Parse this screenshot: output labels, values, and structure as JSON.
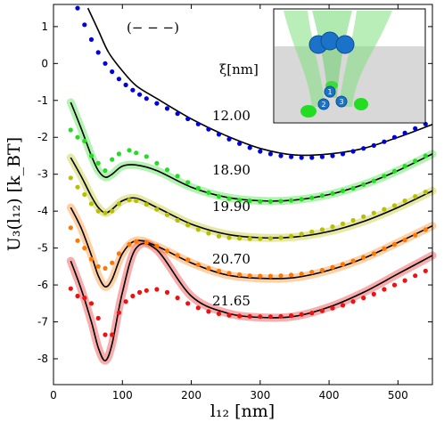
{
  "chart_data": {
    "type": "line",
    "xlabel": "l₁₂ [nm]",
    "ylabel": "U₃(l₁₂) [k_BT]",
    "xlim": [
      0,
      550
    ],
    "ylim": [
      -8.7,
      1.6
    ],
    "xticks": [
      "0",
      "100",
      "200",
      "300",
      "400",
      "500"
    ],
    "yticks": [
      "1",
      "0",
      "-1",
      "-2",
      "-3",
      "-4",
      "-5",
      "-6",
      "-7",
      "-8"
    ],
    "grid": false,
    "annotations": {
      "legend_label": "(− − −)",
      "xi_header": "ξ[nm]"
    },
    "series": [
      {
        "name": "12.00",
        "color": "#0000dd",
        "band": false,
        "curve_x": [
          50,
          65,
          80,
          100,
          120,
          150,
          200,
          250,
          300,
          350,
          400,
          450,
          500,
          550
        ],
        "curve_y": [
          1.5,
          0.9,
          0.3,
          -0.2,
          -0.6,
          -0.95,
          -1.5,
          -1.95,
          -2.3,
          -2.48,
          -2.45,
          -2.3,
          -2.0,
          -1.65
        ],
        "points_x": [
          35,
          45,
          55,
          65,
          75,
          85,
          95,
          105,
          115,
          125,
          135,
          150,
          165,
          180,
          195,
          210,
          225,
          240,
          255,
          270,
          285,
          300,
          315,
          330,
          345,
          360,
          375,
          390,
          405,
          420,
          435,
          450,
          465,
          480,
          495,
          510,
          525,
          540
        ],
        "points_y": [
          1.5,
          1.05,
          0.65,
          0.3,
          0.0,
          -0.22,
          -0.42,
          -0.58,
          -0.72,
          -0.84,
          -0.95,
          -1.08,
          -1.22,
          -1.36,
          -1.5,
          -1.64,
          -1.78,
          -1.92,
          -2.05,
          -2.17,
          -2.28,
          -2.38,
          -2.45,
          -2.5,
          -2.53,
          -2.55,
          -2.55,
          -2.53,
          -2.5,
          -2.45,
          -2.38,
          -2.3,
          -2.22,
          -2.12,
          -2.0,
          -1.88,
          -1.76,
          -1.64
        ]
      },
      {
        "name": "18.90",
        "color": "#22dd22",
        "band": true,
        "curve_x": [
          25,
          40,
          55,
          65,
          75,
          85,
          100,
          120,
          150,
          200,
          250,
          300,
          350,
          400,
          450,
          500,
          550
        ],
        "curve_y": [
          -1.05,
          -1.75,
          -2.5,
          -2.9,
          -3.08,
          -3.0,
          -2.78,
          -2.75,
          -2.9,
          -3.35,
          -3.62,
          -3.72,
          -3.7,
          -3.55,
          -3.28,
          -2.9,
          -2.45
        ],
        "points_x": [
          25,
          35,
          45,
          55,
          65,
          75,
          85,
          95,
          110,
          120,
          135,
          150,
          165,
          180,
          195,
          210,
          225,
          240,
          255,
          270,
          285,
          300,
          315,
          330,
          345,
          360,
          375,
          390,
          405,
          420,
          435,
          450,
          465,
          480,
          495,
          510,
          525,
          540
        ],
        "points_y": [
          -1.8,
          -2.0,
          -2.1,
          -2.5,
          -2.7,
          -2.9,
          -2.6,
          -2.45,
          -2.35,
          -2.42,
          -2.52,
          -2.7,
          -2.88,
          -3.05,
          -3.22,
          -3.38,
          -3.5,
          -3.6,
          -3.66,
          -3.7,
          -3.72,
          -3.74,
          -3.74,
          -3.73,
          -3.71,
          -3.68,
          -3.64,
          -3.58,
          -3.52,
          -3.45,
          -3.38,
          -3.28,
          -3.18,
          -3.05,
          -2.92,
          -2.78,
          -2.64,
          -2.5
        ]
      },
      {
        "name": "19.90",
        "color": "#b8c000",
        "band": true,
        "curve_x": [
          25,
          40,
          55,
          65,
          75,
          85,
          100,
          120,
          150,
          200,
          250,
          300,
          350,
          400,
          450,
          500,
          550
        ],
        "curve_y": [
          -2.55,
          -3.05,
          -3.6,
          -3.9,
          -4.05,
          -3.95,
          -3.72,
          -3.65,
          -3.9,
          -4.35,
          -4.62,
          -4.72,
          -4.7,
          -4.55,
          -4.28,
          -3.9,
          -3.45
        ],
        "points_x": [
          25,
          35,
          45,
          55,
          65,
          75,
          85,
          95,
          110,
          120,
          135,
          150,
          165,
          180,
          195,
          210,
          225,
          240,
          255,
          270,
          285,
          300,
          315,
          330,
          345,
          360,
          375,
          390,
          405,
          420,
          435,
          450,
          465,
          480,
          495,
          510,
          525,
          540
        ],
        "points_y": [
          -3.1,
          -3.35,
          -3.55,
          -3.8,
          -4.0,
          -4.05,
          -4.0,
          -3.8,
          -3.7,
          -3.72,
          -3.82,
          -3.95,
          -4.1,
          -4.25,
          -4.38,
          -4.5,
          -4.6,
          -4.68,
          -4.72,
          -4.74,
          -4.75,
          -4.75,
          -4.74,
          -4.72,
          -4.68,
          -4.62,
          -4.56,
          -4.5,
          -4.42,
          -4.34,
          -4.25,
          -4.15,
          -4.05,
          -3.95,
          -3.85,
          -3.72,
          -3.6,
          -3.48
        ]
      },
      {
        "name": "20.70",
        "color": "#ff7700",
        "band": true,
        "curve_x": [
          25,
          40,
          55,
          65,
          75,
          85,
          100,
          120,
          150,
          200,
          250,
          300,
          350,
          400,
          450,
          500,
          550
        ],
        "curve_y": [
          -3.9,
          -4.45,
          -5.2,
          -5.75,
          -6.05,
          -5.85,
          -5.15,
          -4.8,
          -4.95,
          -5.4,
          -5.72,
          -5.82,
          -5.8,
          -5.6,
          -5.28,
          -4.85,
          -4.4
        ],
        "points_x": [
          25,
          35,
          45,
          55,
          65,
          75,
          85,
          95,
          110,
          120,
          135,
          150,
          165,
          180,
          195,
          210,
          225,
          240,
          255,
          270,
          285,
          300,
          315,
          330,
          345,
          360,
          375,
          390,
          405,
          420,
          435,
          450,
          465,
          480,
          495,
          510,
          525,
          540
        ],
        "points_y": [
          -4.45,
          -4.8,
          -5.0,
          -5.3,
          -5.5,
          -5.55,
          -5.4,
          -5.15,
          -4.9,
          -4.82,
          -4.85,
          -4.95,
          -5.08,
          -5.2,
          -5.32,
          -5.45,
          -5.55,
          -5.62,
          -5.68,
          -5.72,
          -5.75,
          -5.76,
          -5.76,
          -5.75,
          -5.73,
          -5.7,
          -5.65,
          -5.6,
          -5.52,
          -5.44,
          -5.35,
          -5.25,
          -5.15,
          -5.02,
          -4.9,
          -4.78,
          -4.65,
          -4.5
        ]
      },
      {
        "name": "21.65",
        "color": "#ee1111",
        "band": true,
        "curve_x": [
          25,
          40,
          55,
          65,
          75,
          85,
          100,
          120,
          150,
          200,
          250,
          300,
          350,
          400,
          450,
          500,
          550
        ],
        "curve_y": [
          -5.35,
          -6.1,
          -7.0,
          -7.7,
          -8.05,
          -7.6,
          -6.2,
          -5.0,
          -5.05,
          -6.3,
          -6.75,
          -6.88,
          -6.85,
          -6.6,
          -6.2,
          -5.7,
          -5.2
        ],
        "points_x": [
          25,
          35,
          45,
          55,
          65,
          75,
          85,
          95,
          105,
          115,
          125,
          135,
          150,
          165,
          180,
          195,
          210,
          225,
          240,
          255,
          270,
          285,
          300,
          315,
          330,
          345,
          360,
          375,
          390,
          405,
          420,
          435,
          450,
          465,
          480,
          495,
          510,
          525,
          540
        ],
        "points_y": [
          -6.1,
          -6.3,
          -6.35,
          -6.5,
          -6.9,
          -7.35,
          -7.35,
          -6.75,
          -6.45,
          -6.3,
          -6.2,
          -6.15,
          -6.12,
          -6.2,
          -6.35,
          -6.5,
          -6.62,
          -6.72,
          -6.78,
          -6.82,
          -6.84,
          -6.85,
          -6.86,
          -6.86,
          -6.85,
          -6.83,
          -6.8,
          -6.76,
          -6.7,
          -6.63,
          -6.55,
          -6.45,
          -6.35,
          -6.25,
          -6.12,
          -6.0,
          -5.88,
          -5.75,
          -5.62
        ]
      }
    ]
  },
  "inset": {
    "labels": [
      "1",
      "2",
      "3"
    ],
    "colors": {
      "green": "#22dd22",
      "blue": "#1a73c8",
      "gray": "#cccccc"
    }
  }
}
